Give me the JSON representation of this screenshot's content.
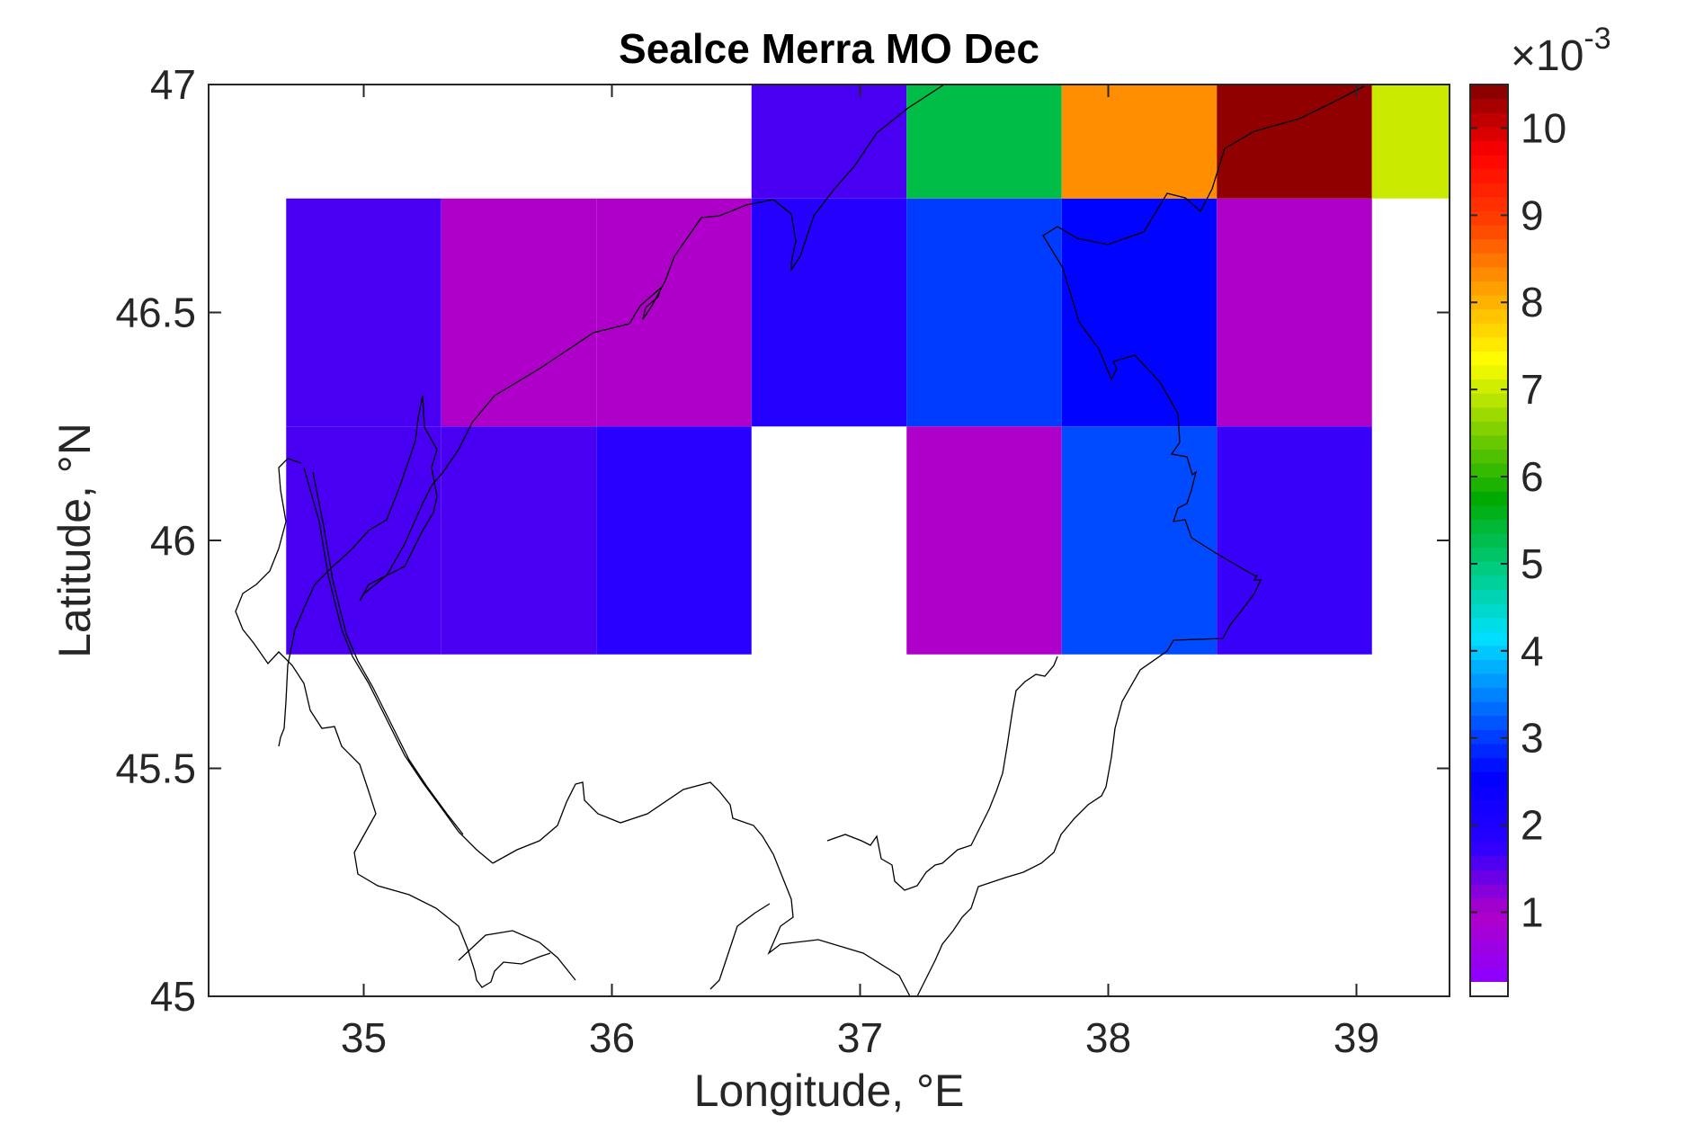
{
  "chart_data": {
    "type": "heatmap",
    "title": "Sealce Merra MO Dec",
    "xlabel": "Longitude, °E",
    "ylabel": "Latitude, °N",
    "xlim": [
      34.375,
      39.375
    ],
    "ylim": [
      45,
      47
    ],
    "x_ticks": [
      35,
      36,
      37,
      38,
      39
    ],
    "x_tick_labels": [
      "35",
      "36",
      "37",
      "38",
      "39"
    ],
    "y_ticks": [
      45,
      45.5,
      46,
      46.5,
      47
    ],
    "y_tick_labels": [
      "45",
      "45.5",
      "46",
      "46.5",
      "47"
    ],
    "cell_width_deg": 0.625,
    "cell_height_deg": 0.5,
    "cells": [
      {
        "lon": 35.0,
        "lat": 46.5,
        "value": 0.0016
      },
      {
        "lon": 35.625,
        "lat": 46.5,
        "value": 0.001
      },
      {
        "lon": 36.25,
        "lat": 46.5,
        "value": 0.001
      },
      {
        "lon": 36.875,
        "lat": 46.5,
        "value": 0.0019
      },
      {
        "lon": 37.5,
        "lat": 46.5,
        "value": 0.003
      },
      {
        "lon": 38.125,
        "lat": 46.5,
        "value": 0.0026
      },
      {
        "lon": 38.75,
        "lat": 46.5,
        "value": 0.001
      },
      {
        "lon": 35.0,
        "lat": 46.0,
        "value": 0.0016
      },
      {
        "lon": 35.625,
        "lat": 46.0,
        "value": 0.0016
      },
      {
        "lon": 36.25,
        "lat": 46.0,
        "value": 0.0018
      },
      {
        "lon": 37.5,
        "lat": 46.0,
        "value": 0.001
      },
      {
        "lon": 38.125,
        "lat": 46.0,
        "value": 0.0031
      },
      {
        "lon": 38.75,
        "lat": 46.0,
        "value": 0.0017
      },
      {
        "lon": 36.875,
        "lat": 47.0,
        "value": 0.0016
      },
      {
        "lon": 37.5,
        "lat": 47.0,
        "value": 0.0053
      },
      {
        "lon": 38.125,
        "lat": 47.0,
        "value": 0.0083
      },
      {
        "lon": 38.75,
        "lat": 47.0,
        "value": 0.0104
      },
      {
        "lon": 39.375,
        "lat": 47.0,
        "value": 0.007
      }
    ],
    "colorbar": {
      "ticks": [
        1,
        2,
        3,
        4,
        5,
        6,
        7,
        8,
        9,
        10
      ],
      "tick_labels": [
        "1",
        "2",
        "3",
        "4",
        "5",
        "6",
        "7",
        "8",
        "9",
        "10"
      ],
      "multiplier_base": "×10",
      "multiplier_exponent": "-3",
      "range": [
        0.2,
        10.5
      ],
      "undefined_color": "#ffffff",
      "color_stops": [
        "#8a00ff",
        "#b000c8",
        "#2a00ff",
        "#0000ff",
        "#0070ff",
        "#00e0ff",
        "#00cc80",
        "#00aa00",
        "#80d000",
        "#ffff00",
        "#ffa500",
        "#ff4000",
        "#ff0000",
        "#800000"
      ]
    },
    "grid": false,
    "legend": "colorbar-right"
  }
}
